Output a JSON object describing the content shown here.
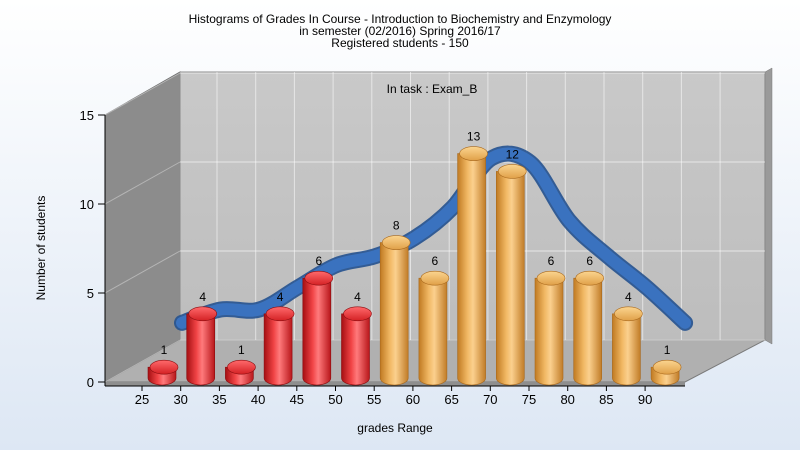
{
  "chart_data": {
    "type": "bar",
    "title": [
      "Histograms of Grades  In Course - Introduction to Biochemistry and Enzymology",
      "in semester  (02/2016) Spring 2016/17",
      "Registered students - 150"
    ],
    "annotation": "In task : Exam_B",
    "xlabel": "grades Range",
    "ylabel": "Number of students",
    "x_ticks": [
      "25",
      "30",
      "35",
      "40",
      "45",
      "50",
      "55",
      "60",
      "65",
      "70",
      "75",
      "80",
      "85",
      "90"
    ],
    "y_ticks": [
      "0",
      "5",
      "10",
      "15"
    ],
    "ylim": [
      0,
      15
    ],
    "values": [
      1,
      4,
      1,
      4,
      6,
      4,
      8,
      6,
      13,
      12,
      6,
      6,
      4,
      1
    ],
    "value_labels": [
      "1",
      "4",
      "1",
      "4",
      "6",
      "4",
      "8",
      "6",
      "13",
      "12",
      "6",
      "6",
      "4",
      "1"
    ],
    "bar_colors": [
      "red",
      "red",
      "red",
      "red",
      "red",
      "red",
      "orange",
      "orange",
      "orange",
      "orange",
      "orange",
      "orange",
      "orange",
      "orange"
    ],
    "curve": "smoothed frequency curve over bars",
    "grid": true,
    "style": "3d"
  },
  "colors": {
    "red_bar": "#e8262b",
    "orange_bar": "#e9a94c",
    "curve": "#3a72bf",
    "back_wall": "#c8c8c8",
    "left_wall": "#8c8c8c",
    "floor": "#b0b0b0"
  }
}
